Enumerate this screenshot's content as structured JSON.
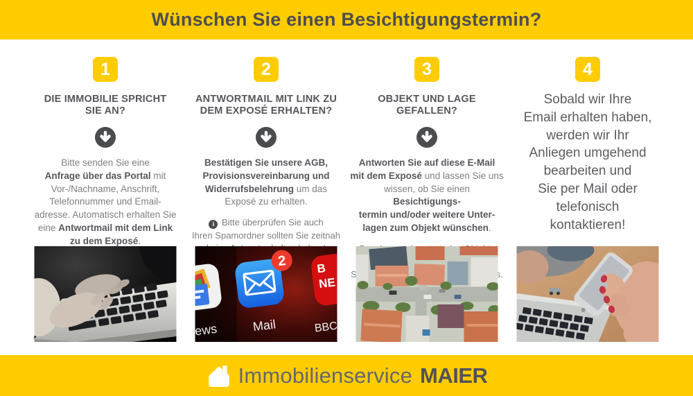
{
  "theme": {
    "yellow": "#FFCC00",
    "dark_text": "#55565a",
    "body_text": "#7e7f83",
    "arrow_circle": "#4b4c4f"
  },
  "header": {
    "title": "Wünschen Sie einen Besichtigungstermin?"
  },
  "steps": [
    {
      "number": "1",
      "heading": "DIE IMMOBILIE SPRICHT\nSIE AN?",
      "body": "Bitte senden Sie eine\n**Anfrage über das Portal** mit\nVor-/Nachname, Anschrift,\nTelefonnummer und Email-\nadresse. Automatisch erhalten Sie\neine **Antwortmail mit dem Link\nzu dem Exposé**."
    },
    {
      "number": "2",
      "heading": "ANTWORTMAIL MIT LINK ZU\nDEM EXPOSÉ ERHALTEN?",
      "body": "**Bestätigen Sie unsere AGB,\nProvisionsvereinbarung und\nWiderrufsbelehrung** um das\nExposé zu erhalten.",
      "note": "Bitte überprüfen Sie auch\nIhren Spamordner sollten Sie zeitnah\nkeine Antwort erhalten haben!"
    },
    {
      "number": "3",
      "heading": "OBJEKT UND LAGE\nGEFALLEN?",
      "body": "**Antworten Sie auf diese E-Mail\nmit dem Exposé** und lassen Sie uns\nwissen, ob Sie einen **Besichtigungs-\ntermin und/oder weitere Unter-\nlagen zum Objekt wünschen**.",
      "note": "Den Ansprechpartner des Objekts finden\nSie auf der letzten Seite des Exposés."
    },
    {
      "number": "4",
      "body_large": "Sobald wir Ihre\nEmail erhalten haben,\nwerden wir Ihr\nAnliegen umgehend\nbearbeiten und\nSie per Mail oder\ntelefonisch\nkontaktieren!"
    }
  ],
  "photos": {
    "mail_screen": {
      "news_partial": "ews",
      "mail_label": "Mail",
      "badge": "2",
      "bbc_icon_line1": "B",
      "bbc_icon_line2": "NE",
      "bbc_partial": "BBC N"
    }
  },
  "footer": {
    "brand_regular": "Immobilienservice",
    "brand_bold": "MAIER"
  }
}
